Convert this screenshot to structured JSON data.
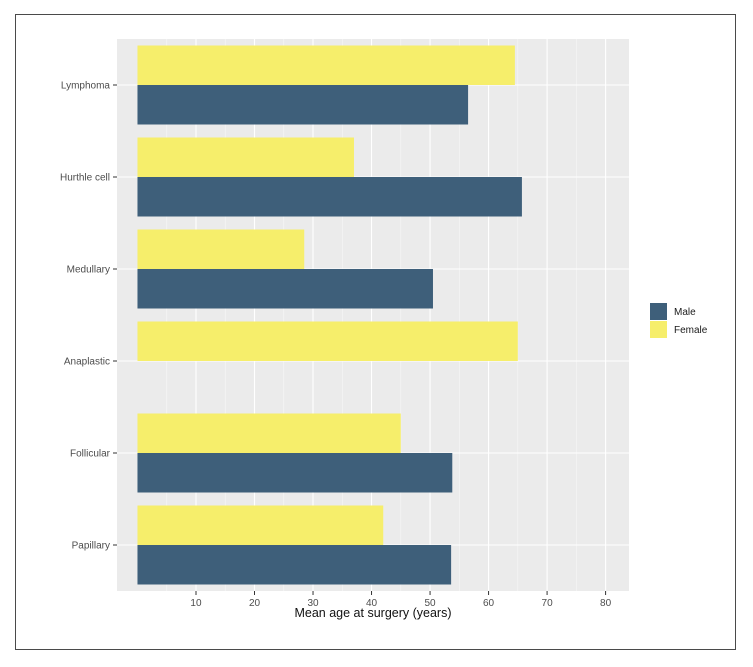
{
  "chart_data": {
    "type": "bar",
    "orientation": "horizontal",
    "categories": [
      "Lymphoma",
      "Hurthle cell",
      "Medullary",
      "Anaplastic",
      "Follicular",
      "Papillary"
    ],
    "series": [
      {
        "name": "Male",
        "color": "#3e5f7a",
        "values": [
          56.5,
          65.7,
          50.5,
          null,
          53.8,
          53.6
        ]
      },
      {
        "name": "Female",
        "color": "#f6ee6b",
        "values": [
          64.5,
          37.0,
          28.5,
          65.0,
          45.0,
          42.0
        ]
      }
    ],
    "xlabel": "Mean age at surgery (years)",
    "ylabel": "",
    "xlim": [
      -3.5,
      84
    ],
    "xticks": [
      "10",
      "20",
      "30",
      "40",
      "50",
      "60",
      "70",
      "80"
    ],
    "grid": true,
    "panel_color": "#ebebeb",
    "legend_position": "right",
    "legend": [
      {
        "label": "Male",
        "color": "#3e5f7a"
      },
      {
        "label": "Female",
        "color": "#f6ee6b"
      }
    ]
  }
}
